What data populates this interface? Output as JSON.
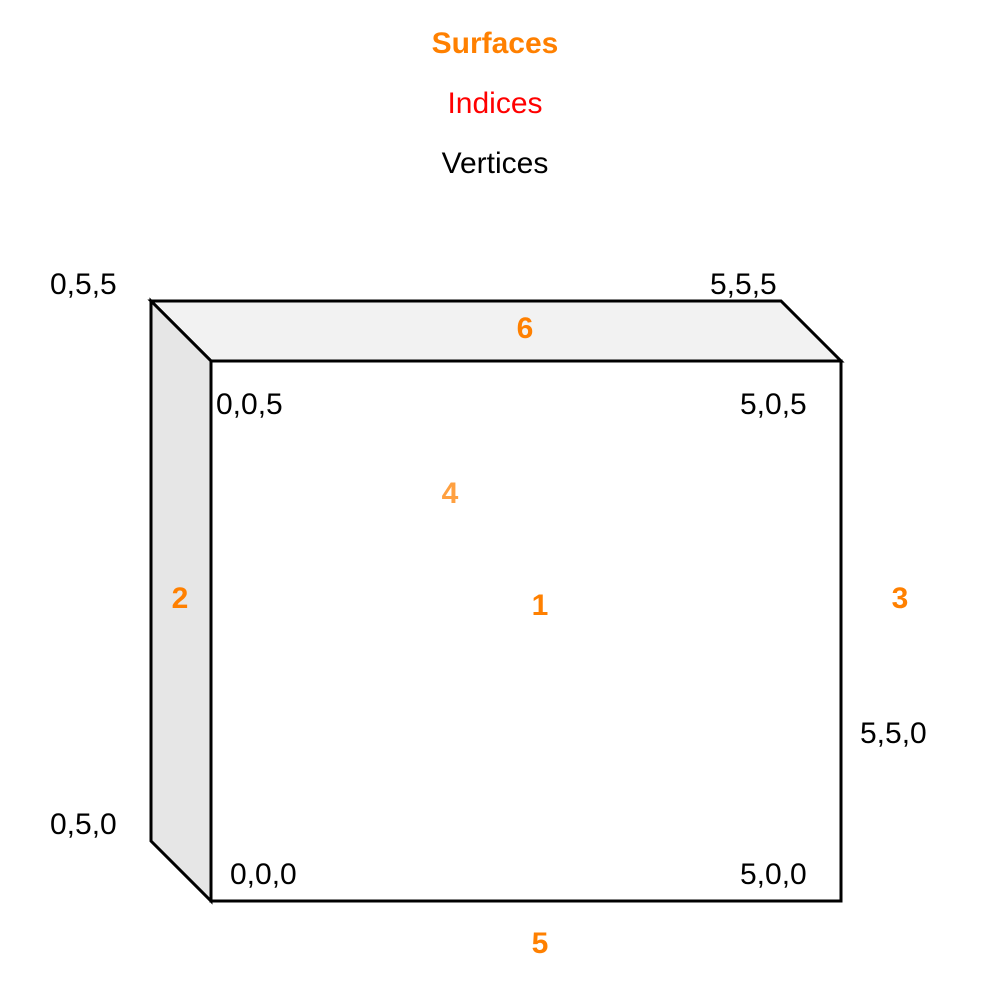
{
  "legend": {
    "surfaces": "Surfaces",
    "indices": "Indices",
    "vertices": "Vertices"
  },
  "surfaces": [
    "1",
    "2",
    "3",
    "4",
    "5",
    "6"
  ],
  "vertices": [
    "0,5,5",
    "5,5,5",
    "0,0,5",
    "5,0,5",
    "5,5,0",
    "0,5,0",
    "0,0,0",
    "5,0,0"
  ]
}
